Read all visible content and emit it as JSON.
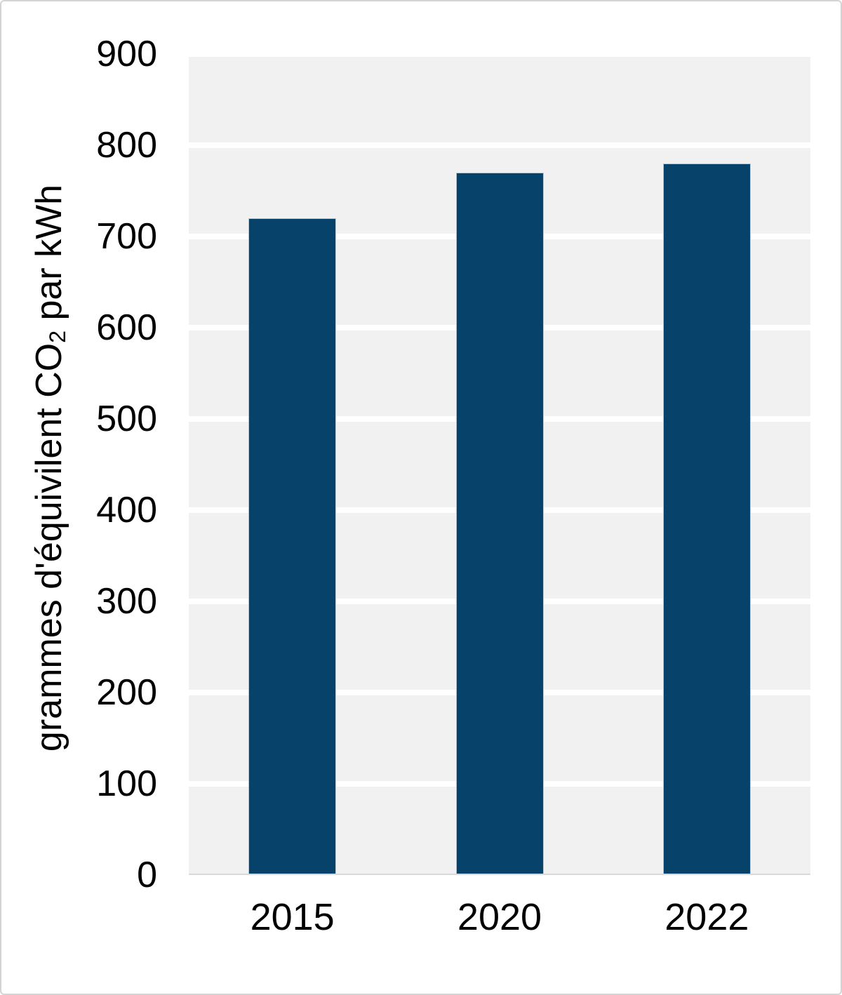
{
  "chart_data": {
    "type": "bar",
    "title": "",
    "categories": [
      "2015",
      "2020",
      "2022"
    ],
    "values": [
      720,
      770,
      780
    ],
    "xlabel": "",
    "ylabel": "grammes d'équivilent CO₂ par kWh",
    "ylabel_parts": {
      "pre": "grammes d'équivilent CO",
      "sub": "2",
      "post": " par kWh"
    },
    "ylim": [
      0,
      900
    ],
    "ytick_step": 100,
    "yticks": [
      0,
      100,
      200,
      300,
      400,
      500,
      600,
      700,
      800,
      900
    ],
    "grid": "horizontal white gridlines every 100 on light gray plot background",
    "legend_position": "none",
    "colors": {
      "bar": "#07426a",
      "bar_border": "#b7c8d3",
      "plot_background": "#f1f1f1",
      "gridline": "#ffffff",
      "baseline": "#d9d9d9",
      "page_border": "#d4d4d4",
      "text": "#000000"
    }
  }
}
